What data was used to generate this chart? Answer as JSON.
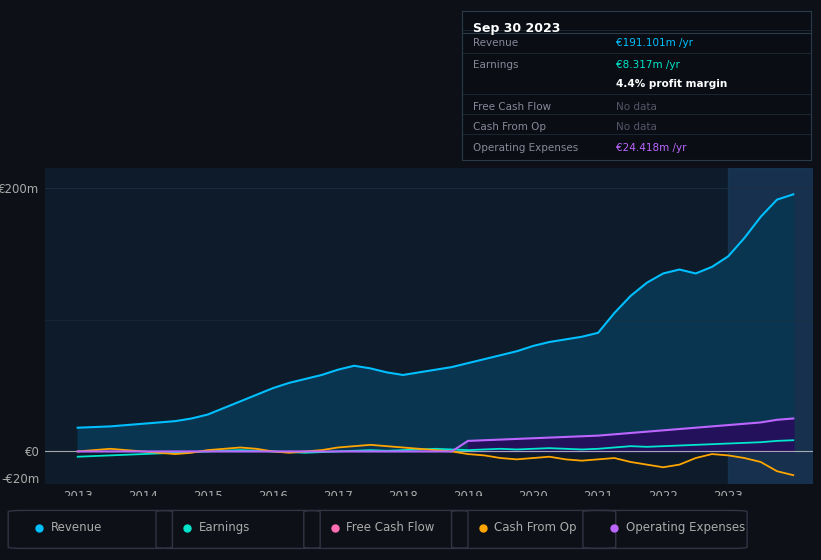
{
  "bg_color": "#0d1117",
  "plot_bg_color": "#0d1b2a",
  "text_color": "#aaaaaa",
  "title_color": "#ffffff",
  "revenue_color": "#00bfff",
  "earnings_color": "#00e5cc",
  "fcf_color": "#ff6eb4",
  "cashfromop_color": "#ffa500",
  "opex_color": "#bb66ff",
  "revenue_fill_color": "#0a3550",
  "opex_fill_color": "#3a1a6e",
  "highlight_color": "#1a3a5c",
  "zero_line_color": "#cccccc",
  "grid_line_color": "#1e3040",
  "legend_items": [
    "Revenue",
    "Earnings",
    "Free Cash Flow",
    "Cash From Op",
    "Operating Expenses"
  ],
  "legend_colors": [
    "#00bfff",
    "#00e5cc",
    "#ff6eb4",
    "#ffa500",
    "#bb66ff"
  ],
  "info_box_bg": "#0a0e14",
  "info_box_border": "#2a3a4a",
  "ylim": [
    -25,
    215
  ],
  "xlim_min": 2012.5,
  "xlim_max": 2024.3,
  "x_years": [
    2013.0,
    2013.25,
    2013.5,
    2013.75,
    2014.0,
    2014.25,
    2014.5,
    2014.75,
    2015.0,
    2015.25,
    2015.5,
    2015.75,
    2016.0,
    2016.25,
    2016.5,
    2016.75,
    2017.0,
    2017.25,
    2017.5,
    2017.75,
    2018.0,
    2018.25,
    2018.5,
    2018.75,
    2019.0,
    2019.25,
    2019.5,
    2019.75,
    2020.0,
    2020.25,
    2020.5,
    2020.75,
    2021.0,
    2021.25,
    2021.5,
    2021.75,
    2022.0,
    2022.25,
    2022.5,
    2022.75,
    2023.0,
    2023.25,
    2023.5,
    2023.75,
    2024.0
  ],
  "revenue": [
    18,
    18.5,
    19,
    20,
    21,
    22,
    23,
    25,
    28,
    33,
    38,
    43,
    48,
    52,
    55,
    58,
    62,
    65,
    63,
    60,
    58,
    60,
    62,
    64,
    67,
    70,
    73,
    76,
    80,
    83,
    85,
    87,
    90,
    105,
    118,
    128,
    135,
    138,
    135,
    140,
    148,
    162,
    178,
    191,
    195
  ],
  "earnings": [
    -4,
    -3.5,
    -3,
    -2.5,
    -2,
    -1.5,
    -1,
    -0.5,
    0,
    0.5,
    1,
    0.5,
    0,
    -0.5,
    -1,
    -0.5,
    0,
    0.5,
    1,
    0.5,
    1,
    1.5,
    2,
    1.5,
    1,
    1.5,
    2,
    1.5,
    2,
    2.5,
    2,
    1.5,
    2,
    3,
    4,
    3.5,
    4,
    4.5,
    5,
    5.5,
    6,
    6.5,
    7,
    8,
    8.5
  ],
  "cashfromop": [
    0,
    1,
    2,
    1,
    0,
    -1,
    -2,
    -1,
    1,
    2,
    3,
    2,
    0,
    -1,
    0,
    1,
    3,
    4,
    5,
    4,
    3,
    2,
    1,
    0,
    -2,
    -3,
    -5,
    -6,
    -5,
    -4,
    -6,
    -7,
    -6,
    -5,
    -8,
    -10,
    -12,
    -10,
    -5,
    -2,
    -3,
    -5,
    -8,
    -15,
    -18
  ],
  "opex": [
    0,
    0,
    0,
    0,
    0,
    0,
    0,
    0,
    0,
    0,
    0,
    0,
    0,
    0,
    0,
    0,
    0,
    0,
    0,
    0,
    0,
    0,
    0,
    0,
    8,
    8.5,
    9,
    9.5,
    10,
    10.5,
    11,
    11.5,
    12,
    13,
    14,
    15,
    16,
    17,
    18,
    19,
    20,
    21,
    22,
    24,
    25
  ],
  "fcf": [
    0,
    0,
    0,
    0,
    0,
    0,
    0,
    0,
    0,
    0,
    0,
    0,
    0,
    0,
    0,
    0,
    0,
    0,
    0,
    0,
    0,
    0,
    0,
    0,
    0,
    0,
    0,
    0,
    0,
    0,
    0,
    0,
    0,
    0,
    0,
    0,
    0,
    0,
    0,
    0,
    0,
    0,
    0,
    0,
    0
  ],
  "highlight_start": 2023.0,
  "highlight_end": 2024.3
}
